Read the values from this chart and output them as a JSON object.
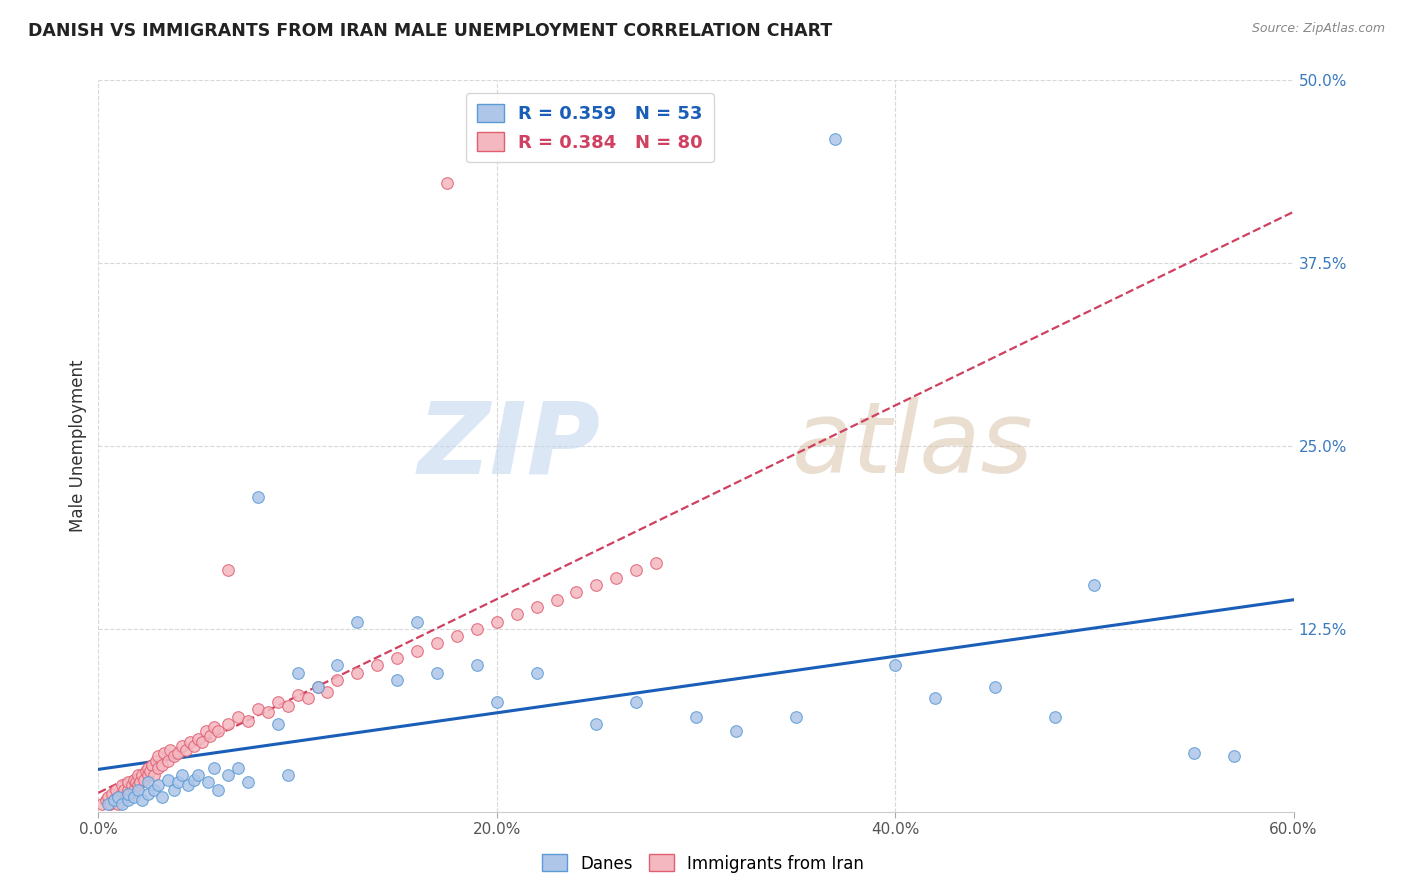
{
  "title": "DANISH VS IMMIGRANTS FROM IRAN MALE UNEMPLOYMENT CORRELATION CHART",
  "source": "Source: ZipAtlas.com",
  "ylabel": "Male Unemployment",
  "xlim": [
    0.0,
    0.6
  ],
  "ylim": [
    0.0,
    0.5
  ],
  "xtick_labels": [
    "0.0%",
    "20.0%",
    "40.0%",
    "60.0%"
  ],
  "xtick_vals": [
    0.0,
    0.2,
    0.4,
    0.6
  ],
  "ytick_labels": [
    "50.0%",
    "37.5%",
    "25.0%",
    "12.5%"
  ],
  "ytick_vals": [
    0.5,
    0.375,
    0.25,
    0.125
  ],
  "danes_color": "#aec6e8",
  "danes_edge_color": "#5b9bd5",
  "iran_color": "#f4b8c1",
  "iran_edge_color": "#e06070",
  "danes_line_color": "#1a5eb8",
  "iran_line_color": "#d04060",
  "background_color": "#ffffff",
  "grid_color": "#d8d8d8",
  "danes_N": 53,
  "iran_N": 80,
  "danes_R": "0.359",
  "iran_R": "0.384",
  "danes_scatter_x": [
    0.005,
    0.008,
    0.01,
    0.012,
    0.015,
    0.015,
    0.018,
    0.02,
    0.022,
    0.025,
    0.025,
    0.028,
    0.03,
    0.032,
    0.035,
    0.038,
    0.04,
    0.042,
    0.045,
    0.048,
    0.05,
    0.055,
    0.058,
    0.06,
    0.065,
    0.07,
    0.075,
    0.08,
    0.09,
    0.095,
    0.1,
    0.11,
    0.12,
    0.13,
    0.15,
    0.16,
    0.17,
    0.19,
    0.2,
    0.22,
    0.25,
    0.27,
    0.3,
    0.32,
    0.35,
    0.37,
    0.4,
    0.42,
    0.45,
    0.48,
    0.5,
    0.55,
    0.57
  ],
  "danes_scatter_y": [
    0.005,
    0.008,
    0.01,
    0.005,
    0.008,
    0.012,
    0.01,
    0.015,
    0.008,
    0.012,
    0.02,
    0.015,
    0.018,
    0.01,
    0.022,
    0.015,
    0.02,
    0.025,
    0.018,
    0.022,
    0.025,
    0.02,
    0.03,
    0.015,
    0.025,
    0.03,
    0.02,
    0.215,
    0.06,
    0.025,
    0.095,
    0.085,
    0.1,
    0.13,
    0.09,
    0.13,
    0.095,
    0.1,
    0.075,
    0.095,
    0.06,
    0.075,
    0.065,
    0.055,
    0.065,
    0.46,
    0.1,
    0.078,
    0.085,
    0.065,
    0.155,
    0.04,
    0.038
  ],
  "iran_scatter_x": [
    0.002,
    0.004,
    0.005,
    0.006,
    0.007,
    0.008,
    0.009,
    0.01,
    0.01,
    0.012,
    0.012,
    0.013,
    0.014,
    0.015,
    0.015,
    0.016,
    0.017,
    0.018,
    0.018,
    0.019,
    0.02,
    0.02,
    0.021,
    0.022,
    0.023,
    0.024,
    0.025,
    0.025,
    0.026,
    0.027,
    0.028,
    0.029,
    0.03,
    0.03,
    0.032,
    0.033,
    0.035,
    0.036,
    0.038,
    0.04,
    0.042,
    0.044,
    0.046,
    0.048,
    0.05,
    0.052,
    0.054,
    0.056,
    0.058,
    0.06,
    0.065,
    0.07,
    0.075,
    0.08,
    0.085,
    0.09,
    0.095,
    0.1,
    0.105,
    0.11,
    0.115,
    0.12,
    0.13,
    0.14,
    0.15,
    0.16,
    0.17,
    0.18,
    0.19,
    0.2,
    0.21,
    0.22,
    0.23,
    0.24,
    0.25,
    0.26,
    0.27,
    0.28,
    0.175,
    0.065
  ],
  "iran_scatter_y": [
    0.005,
    0.008,
    0.01,
    0.005,
    0.012,
    0.008,
    0.015,
    0.005,
    0.01,
    0.012,
    0.018,
    0.015,
    0.01,
    0.015,
    0.02,
    0.012,
    0.018,
    0.015,
    0.022,
    0.02,
    0.018,
    0.025,
    0.02,
    0.025,
    0.022,
    0.028,
    0.025,
    0.03,
    0.028,
    0.032,
    0.025,
    0.035,
    0.03,
    0.038,
    0.032,
    0.04,
    0.035,
    0.042,
    0.038,
    0.04,
    0.045,
    0.042,
    0.048,
    0.045,
    0.05,
    0.048,
    0.055,
    0.052,
    0.058,
    0.055,
    0.06,
    0.065,
    0.062,
    0.07,
    0.068,
    0.075,
    0.072,
    0.08,
    0.078,
    0.085,
    0.082,
    0.09,
    0.095,
    0.1,
    0.105,
    0.11,
    0.115,
    0.12,
    0.125,
    0.13,
    0.135,
    0.14,
    0.145,
    0.15,
    0.155,
    0.16,
    0.165,
    0.17,
    0.43,
    0.165
  ]
}
